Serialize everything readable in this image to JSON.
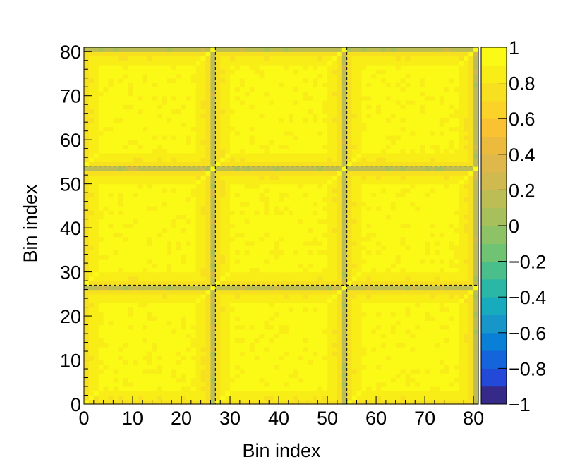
{
  "chart_data": {
    "type": "heatmap",
    "title": "",
    "xlabel": "Bin index",
    "ylabel": "Bin index",
    "xlim": [
      0,
      81
    ],
    "ylim": [
      0,
      81
    ],
    "n_bins": 81,
    "block_boundaries": [
      27,
      54
    ],
    "xticks": [
      0,
      10,
      20,
      30,
      40,
      50,
      60,
      70,
      80
    ],
    "yticks": [
      0,
      10,
      20,
      30,
      40,
      50,
      60,
      70,
      80
    ],
    "zlim": [
      -1,
      1
    ],
    "zticks": [
      1,
      0.8,
      0.6,
      0.4,
      0.2,
      0,
      -0.2,
      -0.4,
      -0.6,
      -0.8,
      -1
    ],
    "ztick_labels": [
      "1",
      "0.8",
      "0.6",
      "0.4",
      "0.2",
      "0",
      "−0.2",
      "−0.4",
      "−0.6",
      "−0.8",
      "−1"
    ],
    "colorbar_levels": 20,
    "description_values": {
      "block_interior": 0.92,
      "block_interior_min": 0.75,
      "block_edge_bins": 0.15,
      "block_corner_bins": 0.95
    },
    "palette": [
      "#352a87",
      "#2249d8",
      "#1465dc",
      "#0a7fd6",
      "#1797c9",
      "#18abbd",
      "#2ab7a6",
      "#4abf8c",
      "#6fc373",
      "#8ec267",
      "#a8c05c",
      "#bcbd55",
      "#d0b94e",
      "#deb84a",
      "#ecbb3e",
      "#f9c233",
      "#fbd227",
      "#f7e01f",
      "#f9ed17",
      "#fbf916"
    ]
  }
}
